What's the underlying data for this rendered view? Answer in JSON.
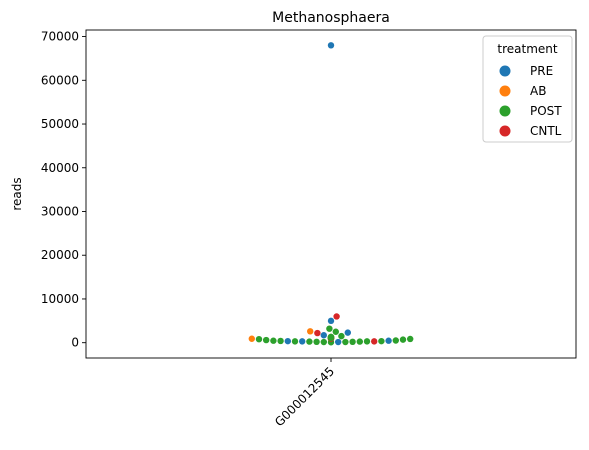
{
  "chart_data": {
    "type": "scatter",
    "title": "Methanosphaera",
    "xlabel": "",
    "ylabel": "reads",
    "categories": [
      "G000012545"
    ],
    "ylim": [
      -3500,
      71500
    ],
    "yticks": [
      0,
      10000,
      20000,
      30000,
      40000,
      50000,
      60000,
      70000
    ],
    "grid": false,
    "legend": {
      "title": "treatment",
      "position": "top-right"
    },
    "series": [
      {
        "name": "PRE",
        "color": "#1f77b4",
        "values": [
          68000,
          5000,
          2300,
          1700,
          1000,
          450,
          350,
          300,
          150
        ]
      },
      {
        "name": "AB",
        "color": "#ff7f0e",
        "values": [
          2600,
          1300,
          1100,
          900
        ]
      },
      {
        "name": "POST",
        "color": "#2ca02c",
        "values": [
          3200,
          2500,
          1500,
          1300,
          1300,
          1200,
          1200,
          1150,
          1100,
          1000,
          1000,
          950,
          900,
          850,
          800,
          700,
          600,
          500,
          450,
          400,
          350,
          300,
          300,
          250,
          250,
          200,
          200,
          150,
          150,
          100
        ]
      },
      {
        "name": "CNTL",
        "color": "#d62728",
        "values": [
          6000,
          2200,
          1000,
          900,
          300
        ]
      }
    ]
  }
}
